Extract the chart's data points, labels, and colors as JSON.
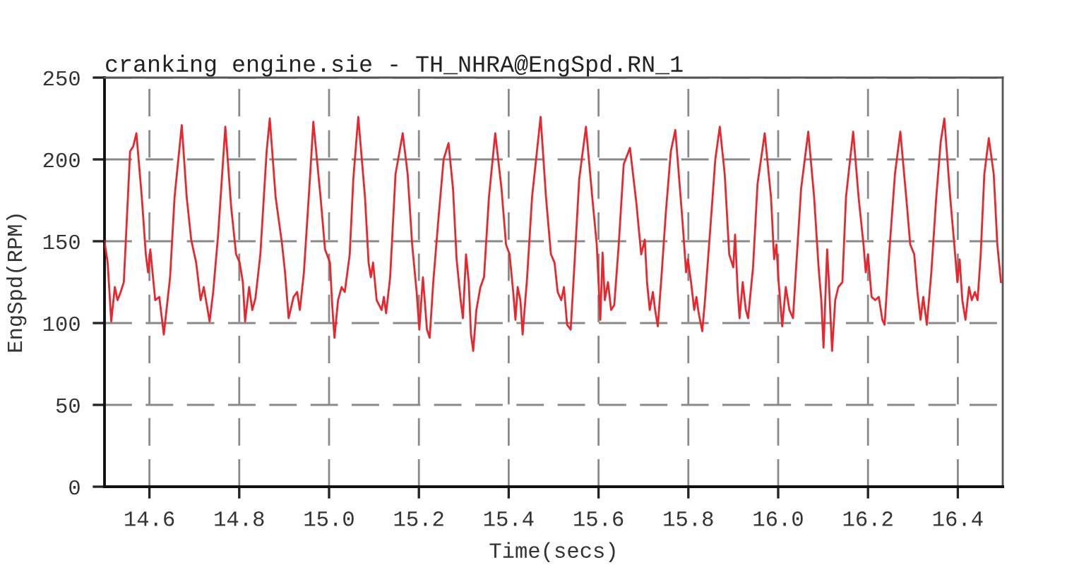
{
  "chart_data": {
    "type": "line",
    "title": "cranking engine.sie - TH_NHRA@EngSpd.RN_1",
    "xlabel": "Time(secs)",
    "ylabel": "EngSpd(RPM)",
    "xlim": [
      14.5,
      16.5
    ],
    "xticks": [
      14.6,
      14.8,
      {
        "value": 15.0,
        "label": "15.0"
      },
      15.2,
      15.4,
      15.6,
      15.8,
      {
        "value": 16.0,
        "label": "16.0"
      },
      16.2,
      16.4
    ],
    "ylim": [
      0,
      250
    ],
    "yticks": [
      0,
      50,
      100,
      150,
      200,
      250
    ],
    "grid": true,
    "line_style": "solid",
    "series": [
      {
        "color": "#e8262e",
        "x": [
          14.5,
          14.507,
          14.515,
          14.523,
          14.529,
          14.536,
          14.543,
          14.557,
          14.564,
          14.571,
          14.583,
          14.592,
          14.597,
          14.602,
          14.613,
          14.622,
          14.632,
          14.646,
          14.656,
          14.672,
          14.683,
          14.693,
          14.704,
          14.714,
          14.721,
          14.734,
          14.742,
          14.753,
          14.769,
          14.782,
          14.793,
          14.801,
          14.808,
          14.813,
          14.822,
          14.829,
          14.836,
          14.847,
          14.861,
          14.868,
          14.881,
          14.895,
          14.902,
          14.91,
          14.921,
          14.929,
          14.935,
          14.944,
          14.958,
          14.965,
          14.981,
          14.991,
          15.002,
          15.007,
          15.012,
          15.02,
          15.028,
          15.035,
          15.046,
          15.054,
          15.065,
          15.08,
          15.088,
          15.093,
          15.098,
          15.106,
          15.117,
          15.122,
          15.127,
          15.136,
          15.148,
          15.164,
          15.175,
          15.185,
          15.195,
          15.201,
          15.209,
          15.218,
          15.224,
          15.232,
          15.243,
          15.255,
          15.266,
          15.276,
          15.284,
          15.293,
          15.298,
          15.305,
          15.311,
          15.316,
          15.321,
          15.328,
          15.337,
          15.345,
          15.356,
          15.37,
          15.384,
          15.394,
          15.402,
          15.41,
          15.415,
          15.42,
          15.426,
          15.431,
          15.441,
          15.452,
          15.471,
          15.483,
          15.494,
          15.502,
          15.509,
          15.517,
          15.523,
          15.53,
          15.538,
          15.546,
          15.557,
          15.572,
          15.586,
          15.596,
          15.604,
          15.609,
          15.614,
          15.621,
          15.628,
          15.635,
          15.645,
          15.656,
          15.67,
          15.684,
          15.695,
          15.703,
          15.708,
          15.714,
          15.721,
          15.726,
          15.732,
          15.74,
          15.75,
          15.761,
          15.771,
          15.787,
          15.795,
          15.799,
          15.806,
          15.813,
          15.818,
          15.823,
          15.831,
          15.837,
          15.85,
          15.86,
          15.87,
          15.881,
          15.891,
          15.9,
          15.904,
          15.91,
          15.914,
          15.921,
          15.928,
          15.933,
          15.944,
          15.954,
          15.97,
          15.984,
          15.991,
          15.996,
          16.001,
          16.009,
          16.017,
          16.025,
          16.033,
          16.04,
          16.051,
          16.067,
          16.08,
          16.09,
          16.096,
          16.101,
          16.109,
          16.113,
          16.12,
          16.127,
          16.134,
          16.143,
          16.151,
          16.167,
          16.179,
          16.19,
          16.195,
          16.2,
          16.208,
          16.216,
          16.224,
          16.232,
          16.237,
          16.247,
          16.26,
          16.272,
          16.287,
          16.294,
          16.303,
          16.31,
          16.317,
          16.323,
          16.331,
          16.341,
          16.352,
          16.362,
          16.37,
          16.383,
          16.394,
          16.399,
          16.404,
          16.41,
          16.417,
          16.425,
          16.431,
          16.438,
          16.444,
          16.451,
          16.459,
          16.469,
          16.48,
          16.488,
          16.496
        ],
        "values": [
          150,
          137,
          101,
          122,
          114,
          119,
          125,
          205,
          208,
          216,
          177,
          142,
          131,
          145,
          114,
          116,
          93,
          128,
          177,
          221,
          177,
          151,
          137,
          114,
          122,
          101,
          119,
          154,
          220,
          171,
          142,
          137,
          125,
          101,
          122,
          108,
          115,
          142,
          205,
          225,
          177,
          149,
          131,
          103,
          116,
          119,
          108,
          131,
          191,
          223,
          177,
          145,
          137,
          111,
          91,
          114,
          122,
          119,
          142,
          188,
          226,
          177,
          137,
          128,
          137,
          114,
          108,
          116,
          106,
          128,
          191,
          216,
          191,
          148,
          119,
          96,
          128,
          96,
          91,
          125,
          162,
          200,
          210,
          182,
          139,
          114,
          103,
          142,
          125,
          93,
          83,
          108,
          122,
          128,
          177,
          216,
          182,
          148,
          142,
          119,
          102,
          122,
          114,
          93,
          128,
          177,
          226,
          177,
          142,
          137,
          119,
          114,
          122,
          99,
          96,
          134,
          188,
          220,
          177,
          148,
          102,
          143,
          114,
          125,
          108,
          111,
          148,
          197,
          207,
          174,
          142,
          151,
          125,
          108,
          119,
          108,
          98,
          128,
          168,
          205,
          218,
          162,
          131,
          139,
          125,
          108,
          116,
          106,
          95,
          114,
          162,
          200,
          220,
          191,
          142,
          134,
          154,
          119,
          103,
          125,
          108,
          103,
          134,
          185,
          216,
          177,
          139,
          148,
          125,
          98,
          122,
          108,
          103,
          134,
          182,
          217,
          177,
          134,
          114,
          85,
          145,
          125,
          83,
          114,
          122,
          125,
          177,
          217,
          177,
          148,
          131,
          142,
          116,
          114,
          116,
          102,
          99,
          142,
          191,
          217,
          171,
          148,
          142,
          119,
          102,
          116,
          99,
          131,
          177,
          211,
          225,
          177,
          142,
          125,
          139,
          114,
          102,
          122,
          114,
          119,
          114,
          142,
          191,
          213,
          191,
          148,
          125
        ]
      }
    ]
  }
}
